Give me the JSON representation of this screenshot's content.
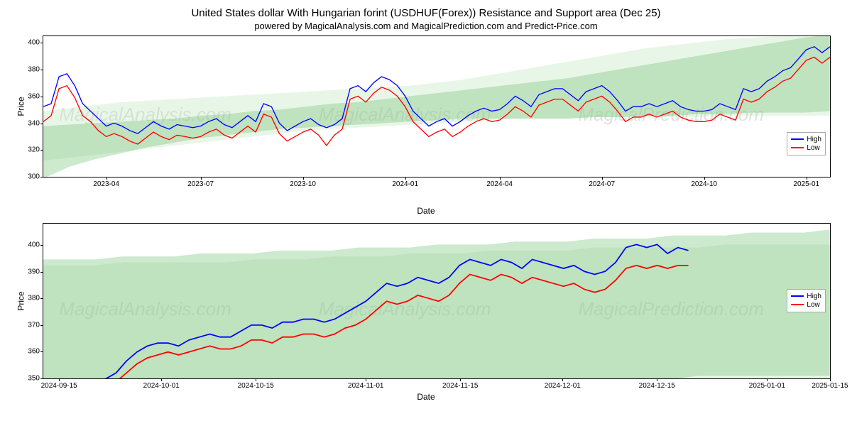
{
  "titles": {
    "main": "United States dollar With Hungarian forint (USDHUF(Forex)) Resistance and Support area (Dec 25)",
    "sub": "powered by MagicalAnalysis.com and MagicalPrediction.com and Predict-Price.com"
  },
  "watermark_texts": [
    "MagicalAnalysis.com",
    "MagicalPrediction.com"
  ],
  "legend": {
    "high": "High",
    "low": "Low"
  },
  "colors": {
    "high_line": "#0000ff",
    "low_line": "#ff0000",
    "band_dark": "#6fbf73",
    "band_light": "#bde5b9",
    "background": "#ffffff",
    "border": "#000000",
    "grid": "#000000"
  },
  "chart1": {
    "type": "line",
    "ylabel": "Price",
    "xlabel": "Date",
    "ylim": [
      300,
      405
    ],
    "yticks": [
      300,
      320,
      340,
      360,
      380,
      400
    ],
    "xticks": [
      "2023-04",
      "2023-07",
      "2023-10",
      "2024-01",
      "2024-04",
      "2024-07",
      "2024-10",
      "2025-01"
    ],
    "xtick_positions": [
      0.08,
      0.2,
      0.33,
      0.46,
      0.58,
      0.71,
      0.84,
      0.97
    ],
    "legend_top_pct": 68,
    "line_width": 1.2,
    "high": [
      358,
      360,
      378,
      380,
      372,
      360,
      355,
      350,
      345,
      347,
      345,
      342,
      340,
      344,
      348,
      345,
      343,
      346,
      345,
      344,
      345,
      348,
      350,
      346,
      344,
      348,
      352,
      348,
      360,
      358,
      347,
      342,
      345,
      348,
      350,
      346,
      344,
      346,
      350,
      370,
      372,
      368,
      374,
      378,
      376,
      372,
      365,
      355,
      350,
      345,
      348,
      350,
      345,
      348,
      352,
      355,
      357,
      355,
      356,
      360,
      365,
      362,
      358,
      366,
      368,
      370,
      370,
      366,
      362,
      368,
      370,
      372,
      368,
      362,
      355,
      358,
      358,
      360,
      358,
      360,
      362,
      358,
      356,
      355,
      355,
      356,
      360,
      358,
      356,
      370,
      368,
      370,
      375,
      378,
      382,
      384,
      390,
      396,
      398,
      394,
      398
    ],
    "low": [
      348,
      352,
      370,
      372,
      364,
      352,
      348,
      342,
      338,
      340,
      338,
      335,
      333,
      337,
      341,
      338,
      336,
      339,
      338,
      337,
      338,
      341,
      343,
      339,
      337,
      341,
      345,
      341,
      353,
      351,
      340,
      335,
      338,
      341,
      343,
      339,
      332,
      339,
      343,
      363,
      365,
      361,
      367,
      371,
      369,
      365,
      358,
      348,
      343,
      338,
      341,
      343,
      338,
      341,
      345,
      348,
      350,
      348,
      349,
      353,
      358,
      355,
      351,
      359,
      361,
      363,
      363,
      359,
      355,
      361,
      363,
      365,
      361,
      355,
      348,
      351,
      351,
      353,
      351,
      353,
      355,
      351,
      349,
      348,
      348,
      349,
      353,
      351,
      349,
      363,
      361,
      363,
      368,
      371,
      375,
      377,
      383,
      389,
      391,
      387,
      391
    ],
    "band1_top": [
      345,
      346,
      347,
      348,
      349,
      350,
      352,
      353,
      355,
      356,
      358,
      360,
      361,
      363,
      365,
      367,
      369,
      371,
      373,
      375,
      377,
      380,
      383,
      386,
      389,
      392,
      395,
      398,
      401,
      404,
      406
    ],
    "band1_bottom": [
      310,
      318,
      323,
      327,
      331,
      334,
      337,
      339,
      341,
      343,
      344,
      345,
      346,
      347,
      348,
      349,
      350,
      350,
      350,
      350,
      350,
      351,
      351,
      352,
      352,
      353,
      353,
      354,
      354,
      354,
      355
    ],
    "band2_top": [
      355,
      357,
      359,
      361,
      362,
      363,
      364,
      365,
      366,
      367,
      368,
      369,
      370,
      371,
      372,
      374,
      376,
      379,
      382,
      385,
      388,
      391,
      394,
      397,
      399,
      401,
      403,
      404,
      405,
      406,
      407
    ],
    "band2_bottom": [
      322,
      324,
      326,
      328,
      330,
      332,
      334,
      336,
      338,
      340,
      342,
      343,
      344,
      345,
      346,
      347,
      348,
      349,
      350,
      350,
      350,
      351,
      351,
      351,
      351,
      351,
      352,
      352,
      352,
      352,
      352
    ]
  },
  "chart2": {
    "type": "line",
    "ylabel": "Price",
    "xlabel": "Date",
    "ylim": [
      350,
      408
    ],
    "yticks": [
      350,
      360,
      370,
      380,
      390,
      400
    ],
    "xticks": [
      "2024-09-15",
      "2024-10-01",
      "2024-10-15",
      "2024-11-01",
      "2024-11-15",
      "2024-12-01",
      "2024-12-15",
      "2025-01-01",
      "2025-01-15"
    ],
    "xtick_positions": [
      0.02,
      0.15,
      0.27,
      0.41,
      0.53,
      0.66,
      0.78,
      0.92,
      1.0
    ],
    "legend_top_pct": 42,
    "line_width": 1.6,
    "high": [
      353,
      353,
      354,
      353,
      355,
      354,
      356,
      358,
      362,
      365,
      367,
      368,
      368,
      367,
      369,
      370,
      371,
      370,
      370,
      372,
      374,
      374,
      373,
      375,
      375,
      376,
      376,
      375,
      376,
      378,
      380,
      382,
      385,
      388,
      387,
      388,
      390,
      389,
      388,
      390,
      394,
      396,
      395,
      394,
      396,
      395,
      393,
      396,
      395,
      394,
      393,
      394,
      392,
      391,
      392,
      395,
      400,
      401,
      400,
      401,
      398,
      400,
      399
    ],
    "low": [
      351,
      351,
      352,
      351,
      352,
      352,
      353,
      355,
      358,
      361,
      363,
      364,
      365,
      364,
      365,
      366,
      367,
      366,
      366,
      367,
      369,
      369,
      368,
      370,
      370,
      371,
      371,
      370,
      371,
      373,
      374,
      376,
      379,
      382,
      381,
      382,
      384,
      383,
      382,
      384,
      388,
      391,
      390,
      389,
      391,
      390,
      388,
      390,
      389,
      388,
      387,
      388,
      386,
      385,
      386,
      389,
      393,
      394,
      393,
      394,
      393,
      394,
      394
    ],
    "band1_top": [
      396,
      396,
      396,
      397,
      397,
      397,
      398,
      398,
      398,
      399,
      399,
      399,
      400,
      400,
      400,
      401,
      401,
      401,
      402,
      402,
      402,
      403,
      403,
      403,
      404,
      404,
      404,
      405,
      405,
      405,
      406
    ],
    "band1_bottom": [
      350,
      350,
      350,
      351,
      351,
      351,
      352,
      352,
      352,
      353,
      353,
      353,
      354,
      354,
      354,
      354,
      355,
      355,
      355,
      355,
      356,
      356,
      356,
      356,
      356,
      357,
      357,
      357,
      357,
      357,
      357
    ],
    "band2_top": [
      394,
      394,
      394,
      395,
      395,
      395,
      395,
      395,
      396,
      396,
      396,
      397,
      397,
      397,
      398,
      398,
      398,
      399,
      399,
      399,
      399,
      400,
      400,
      400,
      400,
      400,
      401,
      401,
      401,
      401,
      401
    ],
    "band2_bottom": [
      350,
      350,
      350,
      350,
      350,
      350,
      350,
      350,
      350,
      350,
      350,
      350,
      350,
      350,
      350,
      350,
      350,
      350,
      350,
      350,
      350,
      350,
      350,
      350,
      350,
      350,
      350,
      350,
      350,
      350,
      350
    ]
  }
}
